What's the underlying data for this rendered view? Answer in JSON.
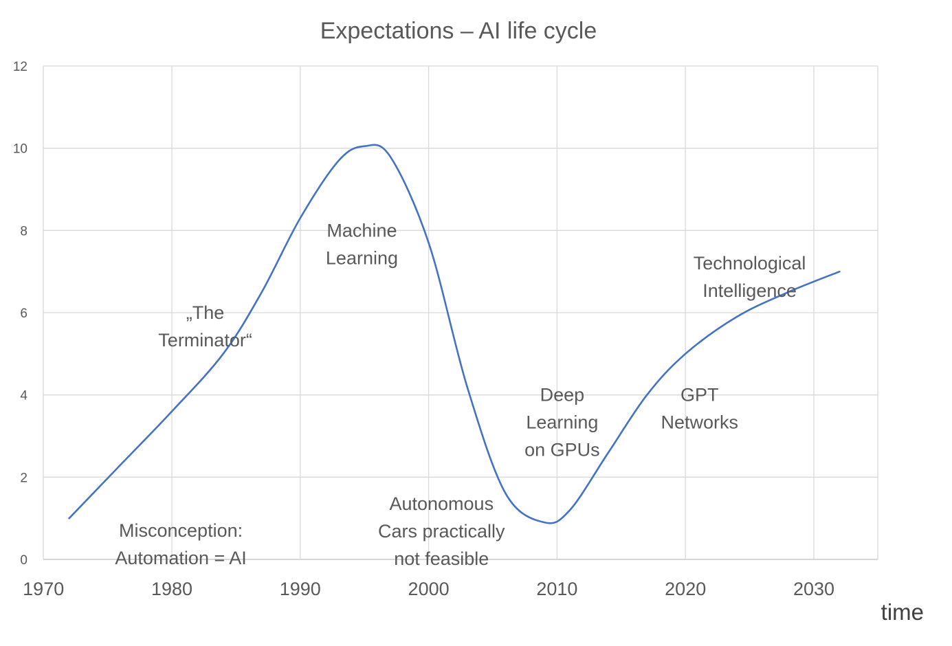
{
  "chart_data": {
    "type": "line",
    "title": "Expectations – AI life cycle",
    "xlabel": "time",
    "ylabel": "",
    "xlim": [
      1970,
      2035
    ],
    "ylim": [
      0,
      12
    ],
    "x_ticks": [
      1970,
      1980,
      1990,
      2000,
      2010,
      2020,
      2030
    ],
    "y_ticks": [
      0,
      2,
      4,
      6,
      8,
      10,
      12
    ],
    "grid": true,
    "legend": "none",
    "line_color": "#4472c4",
    "series": [
      {
        "x": [
          1972,
          1976,
          1980,
          1984,
          1987,
          1990,
          1993,
          1995,
          1997,
          2000,
          2003,
          2006,
          2009,
          2011,
          2014,
          2017,
          2020,
          2024,
          2028,
          2032
        ],
        "y": [
          1.0,
          2.3,
          3.6,
          5.0,
          6.5,
          8.3,
          9.7,
          10.05,
          9.8,
          7.7,
          4.2,
          1.6,
          0.9,
          1.2,
          2.6,
          4.0,
          5.0,
          5.9,
          6.5,
          7.0
        ]
      }
    ],
    "annotations": [
      {
        "lines": [
          "„The",
          "Terminator“"
        ],
        "x": 1982.6,
        "y": 5.85
      },
      {
        "lines": [
          "Machine",
          "Learning"
        ],
        "x": 1994.8,
        "y": 7.85
      },
      {
        "lines": [
          "Technological",
          "Intelligence"
        ],
        "x": 2025.0,
        "y": 7.05
      },
      {
        "lines": [
          "Deep",
          "Learning",
          "on GPUs"
        ],
        "x": 2010.4,
        "y": 3.85
      },
      {
        "lines": [
          "GPT",
          "Networks"
        ],
        "x": 2021.1,
        "y": 3.85
      },
      {
        "lines": [
          "Autonomous",
          "Cars practically",
          "not feasible"
        ],
        "x": 2001.0,
        "y": 1.2
      },
      {
        "lines": [
          "Misconception:",
          "Automation = AI"
        ],
        "x": 1980.7,
        "y": 0.55
      }
    ]
  }
}
